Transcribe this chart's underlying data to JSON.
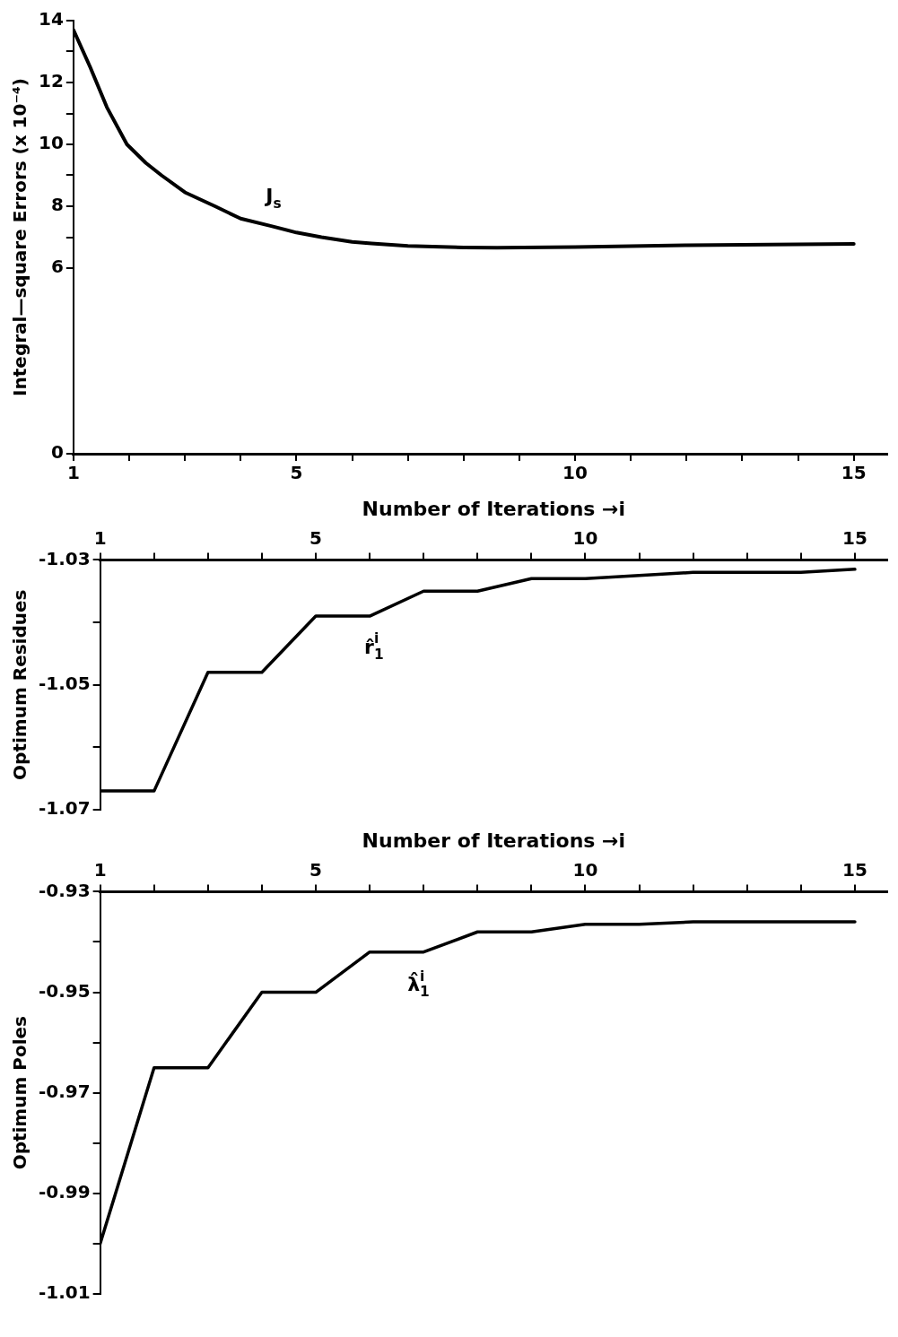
{
  "chart_data": [
    {
      "type": "line",
      "ylabel": "Integral—square Errors (x 10⁻⁴)",
      "xlim": [
        1,
        15.6
      ],
      "xticks": [
        1,
        {
          "value": 2,
          "label": null
        },
        {
          "value": 3,
          "label": null
        },
        {
          "value": 4,
          "label": null
        },
        5,
        {
          "value": 6,
          "label": null
        },
        {
          "value": 7,
          "label": null
        },
        {
          "value": 8,
          "label": null
        },
        {
          "value": 9,
          "label": null
        },
        10,
        {
          "value": 11,
          "label": null
        },
        {
          "value": 12,
          "label": null
        },
        {
          "value": 13,
          "label": null
        },
        {
          "value": 14,
          "label": null
        },
        15
      ],
      "ylim": [
        0,
        14
      ],
      "yticks": [
        0,
        6,
        {
          "value": 7,
          "label": null
        },
        8,
        {
          "value": 9,
          "label": null
        },
        10,
        {
          "value": 11,
          "label": null
        },
        12,
        {
          "value": 13,
          "label": null
        },
        14
      ],
      "x": [
        1,
        1.3,
        1.6,
        1.96,
        2.3,
        2.58,
        3,
        3.54,
        4,
        4.55,
        5,
        5.45,
        6,
        6.35,
        7,
        8,
        8.6,
        10,
        12,
        15
      ],
      "series": [
        {
          "name": "J$_{s}$",
          "color": "#000000",
          "values": [
            13.7,
            12.5,
            11.2,
            10,
            9.4,
            9,
            8.45,
            8,
            7.6,
            7.36,
            7.15,
            7,
            6.85,
            6.8,
            6.72,
            6.67,
            6.66,
            6.68,
            6.74,
            6.78
          ]
        }
      ],
      "grid": false,
      "legend": false,
      "marker": "none",
      "line_style": "solid"
    },
    {
      "type": "line",
      "xlabel": "Number of Iterations →i",
      "ylabel": "Optimum Residues",
      "xlim": [
        1,
        15.6
      ],
      "xticks": [
        1,
        {
          "value": 2,
          "label": null
        },
        {
          "value": 3,
          "label": null
        },
        {
          "value": 4,
          "label": null
        },
        5,
        {
          "value": 6,
          "label": null
        },
        {
          "value": 7,
          "label": null
        },
        {
          "value": 8,
          "label": null
        },
        {
          "value": 9,
          "label": null
        },
        10,
        {
          "value": 11,
          "label": null
        },
        {
          "value": 12,
          "label": null
        },
        {
          "value": 13,
          "label": null
        },
        {
          "value": 14,
          "label": null
        },
        15
      ],
      "ylim": [
        -1.07,
        -1.03
      ],
      "yticks": [
        -1.07,
        {
          "value": -1.06,
          "label": null
        },
        -1.05,
        {
          "value": -1.04,
          "label": null
        },
        -1.03
      ],
      "x": [
        1,
        2,
        3,
        4,
        5,
        6,
        7,
        8,
        9,
        10,
        11,
        12,
        13,
        14,
        15
      ],
      "series": [
        {
          "name": "r̂$^{i}$$_{1}$",
          "color": "#000000",
          "values": [
            -1.067,
            -1.067,
            -1.048,
            -1.048,
            -1.039,
            -1.039,
            -1.035,
            -1.035,
            -1.033,
            -1.033,
            -1.0325,
            -1.032,
            -1.032,
            -1.032,
            -1.0315
          ]
        }
      ],
      "grid": false,
      "legend": false,
      "marker": "none",
      "line_style": "solid"
    },
    {
      "type": "line",
      "xlabel": "Number of Iterations →i",
      "ylabel": "Optimum Poles",
      "xlim": [
        1,
        15.6
      ],
      "xticks": [
        1,
        {
          "value": 2,
          "label": null
        },
        {
          "value": 3,
          "label": null
        },
        {
          "value": 4,
          "label": null
        },
        5,
        {
          "value": 6,
          "label": null
        },
        {
          "value": 7,
          "label": null
        },
        {
          "value": 8,
          "label": null
        },
        {
          "value": 9,
          "label": null
        },
        10,
        {
          "value": 11,
          "label": null
        },
        {
          "value": 12,
          "label": null
        },
        {
          "value": 13,
          "label": null
        },
        {
          "value": 14,
          "label": null
        },
        15
      ],
      "ylim": [
        -1.01,
        -0.93
      ],
      "yticks": [
        -1.01,
        {
          "value": -1,
          "label": null
        },
        -0.99,
        {
          "value": -0.98,
          "label": null
        },
        -0.97,
        {
          "value": -0.96,
          "label": null
        },
        -0.95,
        {
          "value": -0.94,
          "label": null
        },
        -0.93
      ],
      "x": [
        1,
        2,
        3,
        4,
        5,
        6,
        7,
        8,
        9,
        10,
        11,
        12,
        13,
        14,
        15
      ],
      "series": [
        {
          "name": "λ̂$^{i}$$_{1}$",
          "color": "#000000",
          "values": [
            -1.0,
            -0.965,
            -0.965,
            -0.95,
            -0.95,
            -0.942,
            -0.942,
            -0.938,
            -0.938,
            -0.9365,
            -0.9365,
            -0.936,
            -0.936,
            -0.936,
            -0.936
          ]
        }
      ],
      "grid": false,
      "legend": false,
      "marker": "none",
      "line_style": "solid"
    }
  ]
}
